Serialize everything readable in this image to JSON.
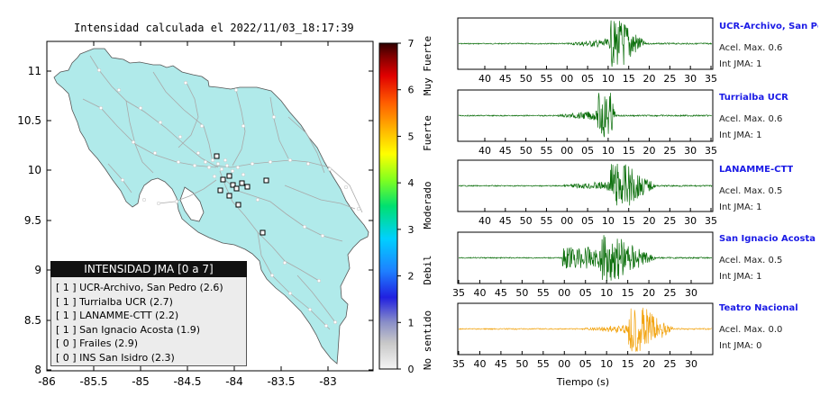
{
  "map": {
    "title": "Intensidad calculada el 2022/11/03_18:17:39",
    "lat_ticks": [
      "11",
      "10.5",
      "10",
      "9.5",
      "9",
      "8.5",
      "8"
    ],
    "lon_ticks": [
      "-86",
      "-85.5",
      "-85",
      "-84.5",
      "-84",
      "-83.5",
      "-83"
    ],
    "land_color": "#b0eaea",
    "road_color": "#a9a9a9"
  },
  "colorbar": {
    "ticks": [
      "7",
      "6",
      "5",
      "4",
      "3",
      "2",
      "1",
      "0"
    ],
    "labels": [
      "Muy Fuerte",
      "Fuerte",
      "Moderado",
      "Debil",
      "No sentido"
    ]
  },
  "legend": {
    "title": "INTENSIDAD JMA [0 a 7]",
    "rows": [
      {
        "level": "[ 1 ]",
        "station": "UCR-Archivo, San Pedro (2.6)"
      },
      {
        "level": "[ 1 ]",
        "station": "Turrialba UCR (2.7)"
      },
      {
        "level": "[ 1 ]",
        "station": "LANAMME-CTT (2.2)"
      },
      {
        "level": "[ 1 ]",
        "station": "San Ignacio Acosta (1.9)"
      },
      {
        "level": "[ 0 ]",
        "station": "Frailes (2.9)"
      },
      {
        "level": "[ 0 ]",
        "station": "INS San Isidro (2.3)"
      }
    ]
  },
  "traces": [
    {
      "name": "UCR-Archivo, San Pedro",
      "accel": "Acel. Max. 0.6",
      "jma": "Int JMA: 1",
      "color": "#0a6e0a",
      "ticks": [
        "40",
        "45",
        "50",
        "55",
        "00",
        "05",
        "10",
        "15",
        "20",
        "25",
        "30",
        "35"
      ]
    },
    {
      "name": "Turrialba UCR",
      "accel": "Acel. Max. 0.6",
      "jma": "Int JMA: 1",
      "color": "#0a6e0a",
      "ticks": [
        "40",
        "45",
        "50",
        "55",
        "00",
        "05",
        "10",
        "15",
        "20",
        "25",
        "30",
        "35"
      ]
    },
    {
      "name": "LANAMME-CTT",
      "accel": "Acel. Max. 0.5",
      "jma": "Int JMA: 1",
      "color": "#0a6e0a",
      "ticks": [
        "40",
        "45",
        "50",
        "55",
        "00",
        "05",
        "10",
        "15",
        "20",
        "25",
        "30",
        "35"
      ]
    },
    {
      "name": "San Ignacio Acosta",
      "accel": "Acel. Max. 0.5",
      "jma": "Int JMA: 1",
      "color": "#0a6e0a",
      "ticks": [
        "35",
        "40",
        "45",
        "50",
        "55",
        "00",
        "05",
        "10",
        "15",
        "20",
        "25",
        "30"
      ]
    },
    {
      "name": "Teatro Nacional",
      "accel": "Acel. Max. 0.0",
      "jma": "Int JMA: 0",
      "color": "#f2a30f",
      "ticks": [
        "35",
        "40",
        "45",
        "50",
        "55",
        "00",
        "05",
        "10",
        "15",
        "20",
        "25",
        "30"
      ]
    }
  ],
  "xaxis_label": "Tiempo (s)"
}
